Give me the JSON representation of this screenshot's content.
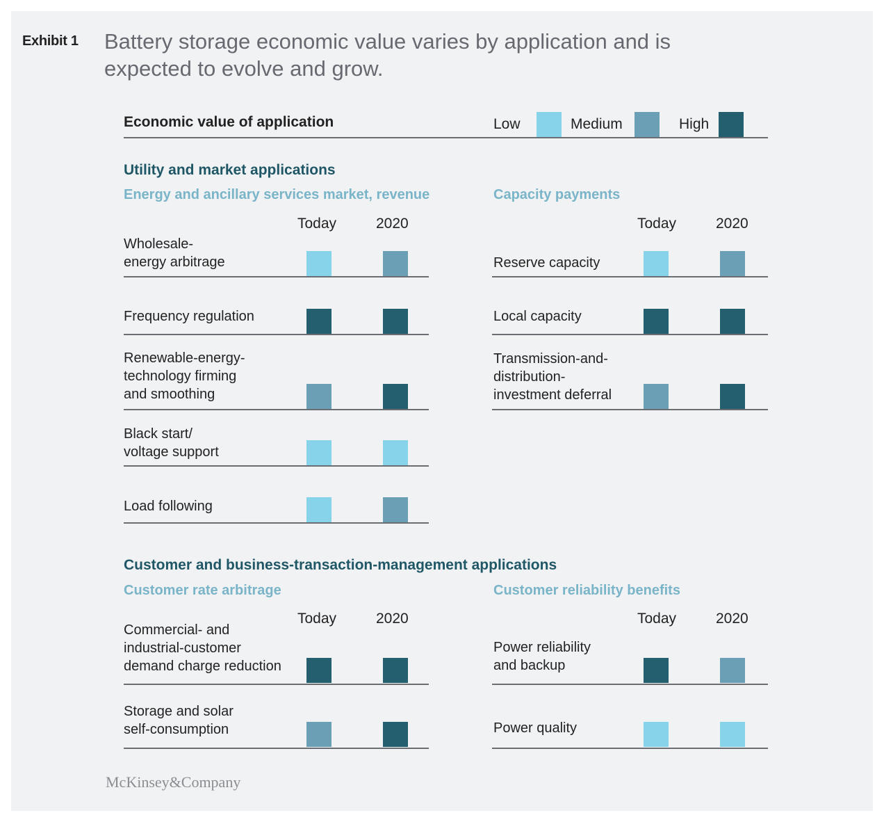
{
  "exhibit_label": "Exhibit 1",
  "title_lines": [
    "Battery storage economic value varies by application and is",
    "expected to evolve and grow."
  ],
  "header_label": "Economic value of application",
  "levels": [
    {
      "key": "low",
      "label": "Low",
      "color": "#86d3ea"
    },
    {
      "key": "medium",
      "label": "Medium",
      "color": "#6a9fb6"
    },
    {
      "key": "high",
      "label": "High",
      "color": "#245f70"
    }
  ],
  "column_headers": {
    "today": "Today",
    "future": "2020"
  },
  "brand": "McKinsey&Company",
  "chart_data": {
    "type": "table",
    "title": "Battery storage economic value varies by application and is expected to evolve and grow.",
    "value_scale": [
      "Low",
      "Medium",
      "High"
    ],
    "columns": [
      "Today",
      "2020"
    ],
    "sections": [
      {
        "title": "Utility and market applications",
        "groups": [
          {
            "title": "Energy and ancillary services market, revenue",
            "rows": [
              {
                "label_lines": [
                  "Wholesale-",
                  "energy arbitrage"
                ],
                "today": "Low",
                "future": "Medium"
              },
              {
                "label_lines": [
                  "Frequency regulation"
                ],
                "today": "High",
                "future": "High"
              },
              {
                "label_lines": [
                  "Renewable-energy-",
                  "technology firming",
                  "and smoothing"
                ],
                "today": "Medium",
                "future": "High"
              },
              {
                "label_lines": [
                  "Black start/",
                  "voltage support"
                ],
                "today": "Low",
                "future": "Low"
              },
              {
                "label_lines": [
                  "Load following"
                ],
                "today": "Low",
                "future": "Medium"
              }
            ]
          },
          {
            "title": "Capacity payments",
            "rows": [
              {
                "label_lines": [
                  "Reserve capacity"
                ],
                "today": "Low",
                "future": "Medium"
              },
              {
                "label_lines": [
                  "Local capacity"
                ],
                "today": "High",
                "future": "High"
              },
              {
                "label_lines": [
                  "Transmission-and-",
                  "distribution-",
                  "investment deferral"
                ],
                "today": "Medium",
                "future": "High"
              }
            ]
          }
        ]
      },
      {
        "title": "Customer and business-transaction-management applications",
        "groups": [
          {
            "title": "Customer rate arbitrage",
            "rows": [
              {
                "label_lines": [
                  "Commercial- and",
                  "industrial-customer",
                  "demand charge reduction"
                ],
                "today": "High",
                "future": "High"
              },
              {
                "label_lines": [
                  "Storage and solar",
                  "self-consumption"
                ],
                "today": "Medium",
                "future": "High"
              }
            ]
          },
          {
            "title": "Customer reliability benefits",
            "rows": [
              {
                "label_lines": [
                  "Power reliability",
                  "and backup"
                ],
                "today": "High",
                "future": "Medium"
              },
              {
                "label_lines": [
                  "Power quality"
                ],
                "today": "Low",
                "future": "Low"
              }
            ]
          }
        ]
      }
    ]
  }
}
